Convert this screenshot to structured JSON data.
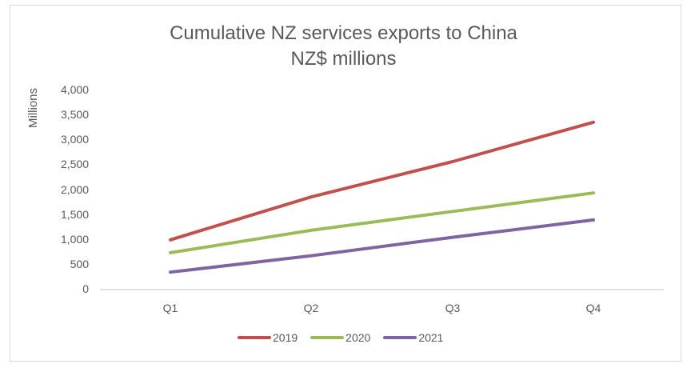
{
  "chart_data": {
    "type": "line",
    "title": "Cumulative NZ services exports to China",
    "subtitle": "NZ$ millions",
    "xlabel": "",
    "ylabel": "Millions",
    "categories": [
      "Q1",
      "Q2",
      "Q3",
      "Q4"
    ],
    "series": [
      {
        "name": "2019",
        "color": "#c0504d",
        "values": [
          1000,
          1860,
          2570,
          3360
        ]
      },
      {
        "name": "2020",
        "color": "#9bbb59",
        "values": [
          740,
          1190,
          1570,
          1940
        ]
      },
      {
        "name": "2021",
        "color": "#8064a2",
        "values": [
          350,
          680,
          1050,
          1400
        ]
      }
    ],
    "ylim": [
      0,
      4000
    ],
    "yticks": [
      "0",
      "500",
      "1,000",
      "1,500",
      "2,000",
      "2,500",
      "3,000",
      "3,500",
      "4,000"
    ],
    "grid": false,
    "legend_position": "bottom"
  }
}
